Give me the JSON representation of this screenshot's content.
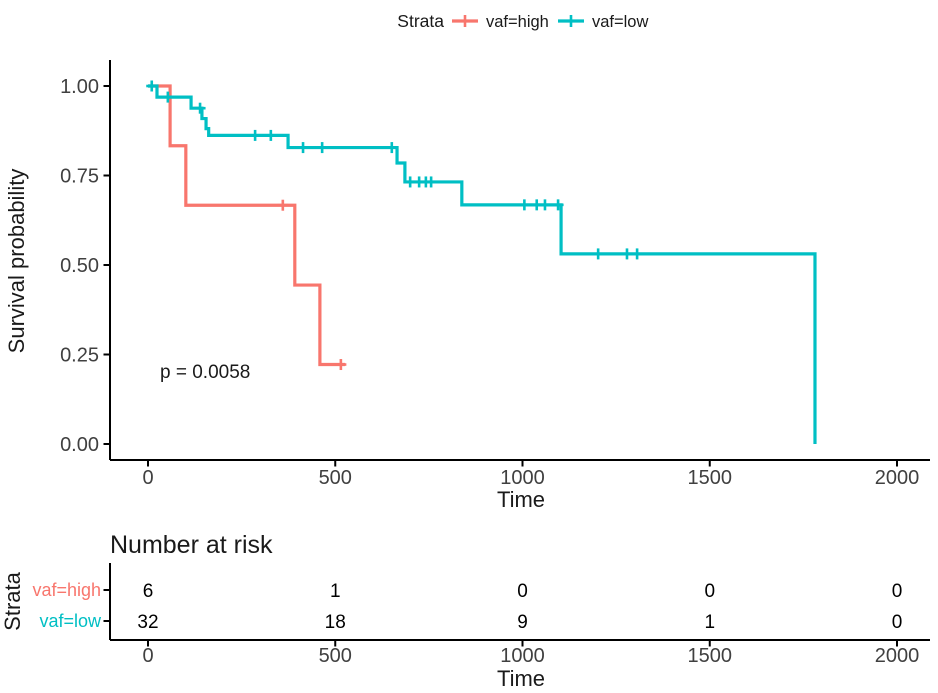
{
  "chart_data": {
    "type": "line",
    "subtype": "kaplan-meier-survival",
    "legend": {
      "title": "Strata",
      "items": [
        {
          "label": "vaf=high",
          "color": "#F8766D"
        },
        {
          "label": "vaf=low",
          "color": "#00BFC4"
        }
      ]
    },
    "x_axis": {
      "label": "Time",
      "range": [
        0,
        2000
      ],
      "ticks": [
        {
          "value": 0,
          "label": "0"
        },
        {
          "value": 500,
          "label": "500"
        },
        {
          "value": 1000,
          "label": "1000"
        },
        {
          "value": 1500,
          "label": "1500"
        },
        {
          "value": 2000,
          "label": "2000"
        }
      ]
    },
    "y_axis": {
      "label": "Survival probability",
      "range": [
        0,
        1
      ],
      "ticks": [
        {
          "value": 1.0,
          "label": "1.00"
        },
        {
          "value": 0.75,
          "label": "0.75"
        },
        {
          "value": 0.5,
          "label": "0.50"
        },
        {
          "value": 0.25,
          "label": "0.25"
        },
        {
          "value": 0.0,
          "label": "0.00"
        }
      ]
    },
    "annotation": {
      "pvalue": "p = 0.0058"
    },
    "series": [
      {
        "name": "vaf=high",
        "color": "#F8766D",
        "start": {
          "t": 0,
          "s": 1.0
        },
        "steps": [
          {
            "t": 59,
            "s": 0.833
          },
          {
            "t": 101,
            "s": 0.667
          },
          {
            "t": 392,
            "s": 0.444
          },
          {
            "t": 459,
            "s": 0.222
          }
        ],
        "end_t": 526,
        "censors": [
          {
            "t": 360,
            "s": 0.667
          },
          {
            "t": 515,
            "s": 0.222
          }
        ]
      },
      {
        "name": "vaf=low",
        "color": "#00BFC4",
        "start": {
          "t": 0,
          "s": 1.0
        },
        "steps": [
          {
            "t": 24,
            "s": 0.969
          },
          {
            "t": 115,
            "s": 0.938
          },
          {
            "t": 144,
            "s": 0.909
          },
          {
            "t": 155,
            "s": 0.881
          },
          {
            "t": 162,
            "s": 0.862
          },
          {
            "t": 374,
            "s": 0.828
          },
          {
            "t": 665,
            "s": 0.785
          },
          {
            "t": 686,
            "s": 0.732
          },
          {
            "t": 838,
            "s": 0.668
          },
          {
            "t": 1103,
            "s": 0.531
          },
          {
            "t": 1781,
            "s": 0.0
          }
        ],
        "end_t": 1781,
        "censors": [
          {
            "t": 10,
            "s": 1.0
          },
          {
            "t": 53,
            "s": 0.969
          },
          {
            "t": 139,
            "s": 0.938
          },
          {
            "t": 286,
            "s": 0.862
          },
          {
            "t": 328,
            "s": 0.862
          },
          {
            "t": 414,
            "s": 0.828
          },
          {
            "t": 465,
            "s": 0.828
          },
          {
            "t": 651,
            "s": 0.828
          },
          {
            "t": 700,
            "s": 0.732
          },
          {
            "t": 724,
            "s": 0.732
          },
          {
            "t": 742,
            "s": 0.732
          },
          {
            "t": 756,
            "s": 0.732
          },
          {
            "t": 1005,
            "s": 0.668
          },
          {
            "t": 1038,
            "s": 0.668
          },
          {
            "t": 1060,
            "s": 0.668
          },
          {
            "t": 1095,
            "s": 0.668
          },
          {
            "t": 1202,
            "s": 0.531
          },
          {
            "t": 1279,
            "s": 0.531
          },
          {
            "t": 1306,
            "s": 0.531
          }
        ]
      }
    ],
    "risk_table": {
      "title": "Number at risk",
      "ylabel": "Strata",
      "xlabel": "Time",
      "times": [
        0,
        500,
        1000,
        1500,
        2000
      ],
      "rows": [
        {
          "label": "vaf=high",
          "color": "#F8766D",
          "counts": [
            "6",
            "1",
            "0",
            "0",
            "0"
          ]
        },
        {
          "label": "vaf=low",
          "color": "#00BFC4",
          "counts": [
            "32",
            "18",
            "9",
            "1",
            "0"
          ]
        }
      ]
    },
    "layout_hints": {
      "grid": false,
      "legend_position": "top",
      "theme": "classic-white"
    }
  }
}
